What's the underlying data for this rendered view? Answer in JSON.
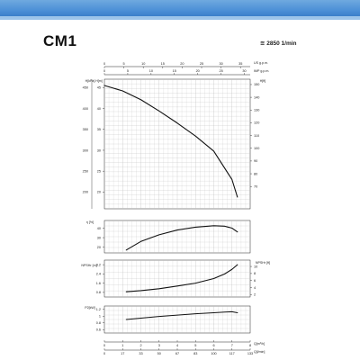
{
  "header": {
    "model": "CM1",
    "speed": "≅ 2850 1/min"
  },
  "chart_data": [
    {
      "type": "line",
      "panel": "head",
      "top_axis_1": {
        "label": "US g.p.m.",
        "ticks": [
          "0",
          "5",
          "10",
          "15",
          "20",
          "25",
          "30",
          "35"
        ]
      },
      "top_axis_2": {
        "label": "IMP g.p.m.",
        "ticks": [
          "0",
          "5",
          "10",
          "15",
          "20",
          "25",
          "30"
        ]
      },
      "left_axis_1": {
        "label": "H[kPa]",
        "ticks": [
          "450",
          "400",
          "350",
          "300",
          "250",
          "200"
        ]
      },
      "left_axis_2": {
        "label": "H[m]",
        "ticks": [
          "45",
          "40",
          "35",
          "30",
          "25",
          "20"
        ]
      },
      "right_axis": {
        "label": "H[ft]",
        "ticks": [
          "150",
          "140",
          "130",
          "120",
          "110",
          "100",
          "90",
          "80",
          "70"
        ]
      },
      "x": [
        0,
        1,
        2,
        3,
        4,
        5,
        6,
        7,
        7.3
      ],
      "y": [
        45.5,
        44.2,
        42.1,
        39.4,
        36.5,
        33.4,
        29.8,
        23.0,
        18.8
      ],
      "xlim": [
        0,
        8
      ],
      "ylim": [
        16,
        47
      ],
      "grid": true
    },
    {
      "type": "line",
      "panel": "efficiency",
      "left_axis": {
        "label": "η [%]",
        "ticks": [
          "40",
          "30",
          "20"
        ]
      },
      "x": [
        1.2,
        2,
        3,
        4,
        5,
        6,
        6.6,
        7,
        7.3
      ],
      "y": [
        17,
        26,
        33,
        38,
        41,
        42.5,
        42,
        40,
        36
      ],
      "xlim": [
        0,
        8
      ],
      "ylim": [
        14,
        48
      ],
      "grid": true
    },
    {
      "type": "line",
      "panel": "npsh",
      "left_axis": {
        "label": "NPSHr [m]",
        "ticks": [
          "3.2",
          "2.4",
          "1.6",
          "0.8"
        ]
      },
      "right_axis": {
        "label": "NPSHr [ft]",
        "ticks": [
          "10",
          "8",
          "6",
          "4",
          "2"
        ]
      },
      "x": [
        1.2,
        2,
        3,
        4,
        5,
        6,
        6.6,
        7,
        7.3
      ],
      "y": [
        0.85,
        0.95,
        1.12,
        1.35,
        1.6,
        2.0,
        2.4,
        2.8,
        3.2
      ],
      "xlim": [
        0,
        8
      ],
      "ylim": [
        0.4,
        3.6
      ],
      "grid": true
    },
    {
      "type": "line",
      "panel": "power",
      "left_axis": {
        "label": "P2[kW]",
        "ticks": [
          "1.2",
          "1",
          "0.8",
          "0.6"
        ]
      },
      "bottom_axis_1": {
        "label": "Q[m³/h]",
        "ticks": [
          "0",
          "1",
          "2",
          "3",
          "4",
          "5",
          "6",
          "7",
          "8"
        ]
      },
      "bottom_axis_2": {
        "label": "Q[l/min]",
        "ticks": [
          "0",
          "17",
          "33",
          "50",
          "67",
          "83",
          "100",
          "117",
          "133"
        ]
      },
      "x": [
        1.2,
        2,
        3,
        4,
        5,
        6,
        6.6,
        7,
        7.3
      ],
      "y": [
        0.9,
        0.94,
        0.99,
        1.03,
        1.07,
        1.1,
        1.12,
        1.13,
        1.1
      ],
      "xlim": [
        0,
        8
      ],
      "ylim": [
        0.5,
        1.3
      ],
      "grid": true
    }
  ]
}
